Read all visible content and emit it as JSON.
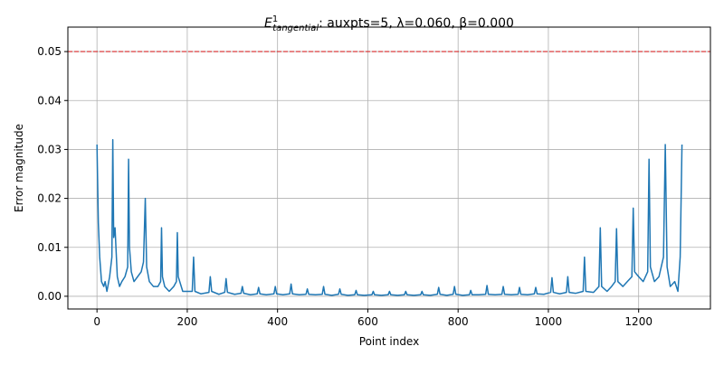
{
  "chart_data": {
    "type": "line",
    "title": {
      "symbol": "E",
      "superscript": "1",
      "subscript": "tangential",
      "text": ": auxpts=5, λ=0.060, β=0.000"
    },
    "x_label": "Point index",
    "y_label": "Error magnitude",
    "x": [
      0,
      3,
      6,
      10,
      15,
      18,
      22,
      28,
      33,
      35,
      37,
      40,
      45,
      50,
      55,
      62,
      68,
      70,
      72,
      76,
      82,
      90,
      98,
      103,
      107,
      110,
      116,
      125,
      135,
      141,
      143,
      145,
      150,
      160,
      170,
      176,
      178,
      180,
      190,
      200,
      211,
      214,
      217,
      230,
      248,
      251,
      254,
      270,
      283,
      286,
      289,
      305,
      319,
      322,
      325,
      340,
      355,
      358,
      361,
      375,
      392,
      395,
      398,
      412,
      427,
      430,
      433,
      448,
      463,
      466,
      469,
      484,
      499,
      502,
      505,
      520,
      535,
      538,
      541,
      556,
      571,
      574,
      577,
      592,
      609,
      612,
      615,
      630,
      645,
      648,
      651,
      666,
      681,
      684,
      687,
      702,
      717,
      720,
      723,
      738,
      754,
      757,
      760,
      775,
      789,
      792,
      795,
      810,
      825,
      828,
      831,
      846,
      861,
      864,
      867,
      882,
      897,
      900,
      903,
      918,
      933,
      936,
      939,
      954,
      969,
      972,
      975,
      990,
      1005,
      1008,
      1011,
      1025,
      1040,
      1043,
      1046,
      1060,
      1077,
      1080,
      1083,
      1100,
      1112,
      1115,
      1118,
      1130,
      1140,
      1148,
      1151,
      1154,
      1165,
      1175,
      1185,
      1188,
      1191,
      1200,
      1210,
      1220,
      1223,
      1226,
      1235,
      1245,
      1255,
      1259,
      1263,
      1270,
      1280,
      1287,
      1292,
      1296
    ],
    "series": [
      {
        "color": "#1f77b4",
        "values": [
          0.031,
          0.015,
          0.008,
          0.003,
          0.002,
          0.003,
          0.001,
          0.004,
          0.008,
          0.032,
          0.012,
          0.014,
          0.004,
          0.002,
          0.003,
          0.004,
          0.006,
          0.028,
          0.01,
          0.005,
          0.003,
          0.004,
          0.005,
          0.007,
          0.02,
          0.006,
          0.003,
          0.002,
          0.002,
          0.003,
          0.014,
          0.004,
          0.002,
          0.001,
          0.002,
          0.003,
          0.013,
          0.004,
          0.001,
          0.001,
          0.001,
          0.008,
          0.001,
          0.0005,
          0.0008,
          0.004,
          0.001,
          0.0004,
          0.0008,
          0.0036,
          0.0008,
          0.0004,
          0.0006,
          0.002,
          0.0006,
          0.0003,
          0.0005,
          0.0018,
          0.0005,
          0.0003,
          0.0005,
          0.002,
          0.0005,
          0.0003,
          0.0005,
          0.0025,
          0.0005,
          0.0003,
          0.0004,
          0.0015,
          0.0004,
          0.0003,
          0.0004,
          0.002,
          0.0004,
          0.0002,
          0.0004,
          0.0015,
          0.0004,
          0.0002,
          0.0003,
          0.0012,
          0.0003,
          0.0002,
          0.0003,
          0.001,
          0.0003,
          0.0002,
          0.0003,
          0.001,
          0.0003,
          0.0002,
          0.0003,
          0.001,
          0.0003,
          0.0002,
          0.0003,
          0.001,
          0.0003,
          0.0002,
          0.0004,
          0.0018,
          0.0004,
          0.0002,
          0.0004,
          0.002,
          0.0004,
          0.0002,
          0.0003,
          0.0012,
          0.0003,
          0.0003,
          0.0004,
          0.0022,
          0.0004,
          0.0003,
          0.0004,
          0.002,
          0.0004,
          0.0003,
          0.0004,
          0.0018,
          0.0004,
          0.0003,
          0.0005,
          0.0018,
          0.0005,
          0.0004,
          0.0008,
          0.0038,
          0.0008,
          0.0005,
          0.0008,
          0.004,
          0.0008,
          0.0006,
          0.001,
          0.008,
          0.001,
          0.0008,
          0.002,
          0.014,
          0.002,
          0.001,
          0.002,
          0.003,
          0.0138,
          0.003,
          0.002,
          0.003,
          0.004,
          0.018,
          0.005,
          0.004,
          0.003,
          0.005,
          0.028,
          0.006,
          0.003,
          0.004,
          0.008,
          0.031,
          0.006,
          0.002,
          0.003,
          0.001,
          0.008,
          0.031
        ]
      }
    ],
    "hline": {
      "value": 0.05,
      "color": "#d62728"
    },
    "xlim": [
      -64.5,
      1359
    ],
    "ylim": [
      -0.0026,
      0.055
    ],
    "xticks": [
      0,
      200,
      400,
      600,
      800,
      1000,
      1200
    ],
    "yticks": [
      {
        "value": 0,
        "label": "0.00"
      },
      {
        "value": 0.01,
        "label": "0.01"
      },
      {
        "value": 0.02,
        "label": "0.02"
      },
      {
        "value": 0.03,
        "label": "0.03"
      },
      {
        "value": 0.04,
        "label": "0.04"
      },
      {
        "value": 0.05,
        "label": "0.05"
      }
    ],
    "grid": true
  }
}
